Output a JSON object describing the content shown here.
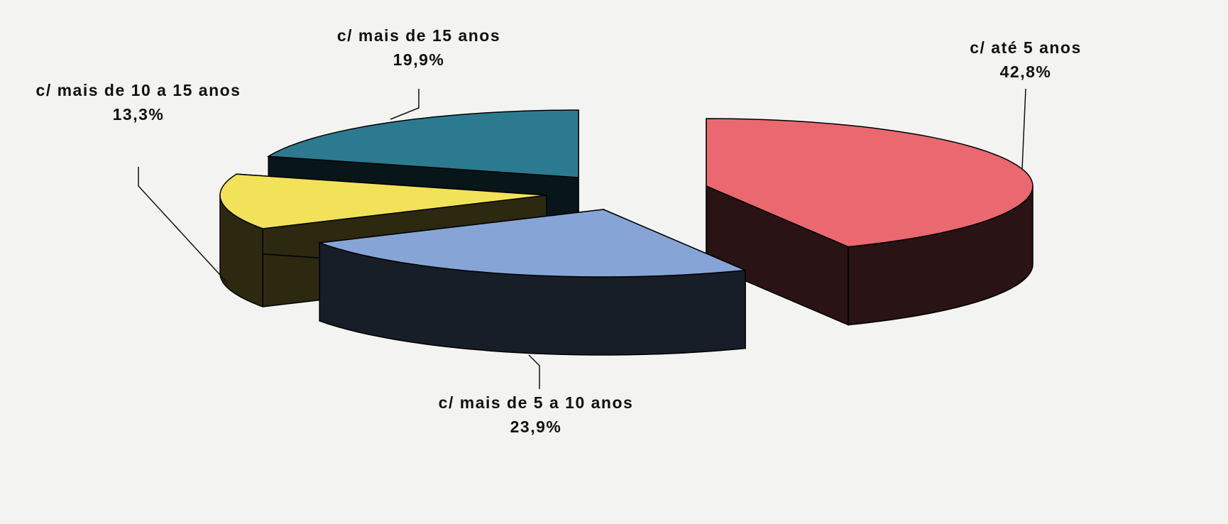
{
  "chart_data": {
    "type": "pie3d",
    "categories": [
      "c/ até 5 anos",
      "c/ mais de 5 a 10 anos",
      "c/ mais de 10 a 15 anos",
      "c/ mais de 15 anos"
    ],
    "values": [
      42.8,
      23.9,
      13.3,
      19.9
    ],
    "value_labels": [
      "42,8%",
      "23,9%",
      "13,3%",
      "19,9%"
    ],
    "colors": [
      "#ea6870",
      "#86a4d6",
      "#f2e25a",
      "#2c7a90"
    ]
  }
}
